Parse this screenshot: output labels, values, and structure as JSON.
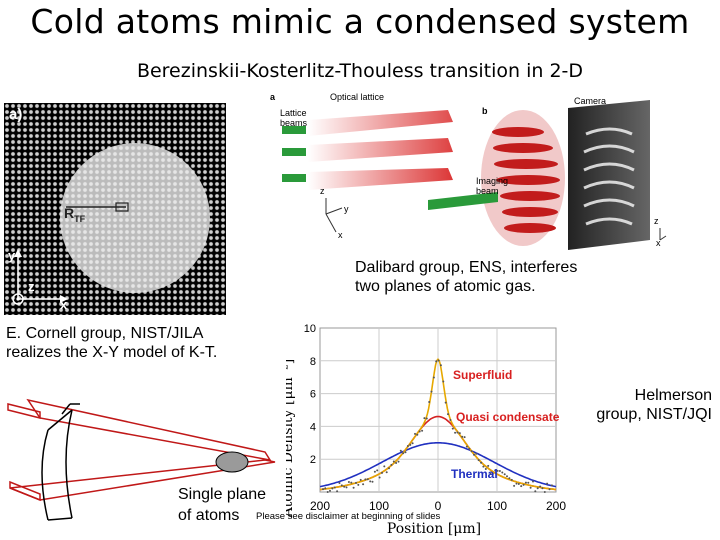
{
  "slide": {
    "title": "Cold atoms mimic a condensed system",
    "subtitle": "Berezinskii-Kosterlitz-Thouless transition in 2-D"
  },
  "lattice_figure": {
    "panel_label": "a)",
    "radius_label": "R",
    "radius_sub": "TF",
    "axis_y": "y",
    "axis_z": "z",
    "axis_x": "x"
  },
  "optical_figure": {
    "panel_a": "a",
    "panel_b": "b",
    "optical_lattice": "Optical lattice",
    "lattice_beams_1": "Lattice",
    "lattice_beams_2": "beams",
    "camera": "Camera",
    "imaging_1": "Imaging",
    "imaging_2": "beam",
    "axis_z": "z",
    "axis_y": "y",
    "axis_x": "x",
    "axis_z2": "z",
    "axis_x2": "x"
  },
  "captions": {
    "dalibard_1": "Dalibard group, ENS, interferes",
    "dalibard_2": "two planes of atomic gas.",
    "cornell_1": "E. Cornell group, NIST/JILA",
    "cornell_2": "realizes the X-Y model of K-T.",
    "helmerson_1": "Helmerson",
    "helmerson_2": "group, NIST/JQI",
    "single_1": "Single plane",
    "single_2": "of atoms",
    "disclaimer": "Please see disclaimer at beginning of slides"
  },
  "chart_data": {
    "type": "line",
    "xlabel": "Position [μm]",
    "ylabel": "Atomic Density [μm⁻²]",
    "xlim": [
      -200,
      200
    ],
    "ylim": [
      0,
      10
    ],
    "x_ticks": [
      "200",
      "100",
      "0",
      "100",
      "200"
    ],
    "y_ticks": [
      "2",
      "4",
      "6",
      "8",
      "10"
    ],
    "grid": true,
    "series": [
      {
        "name": "Superfluid",
        "color": "#e6a800",
        "width": 16,
        "peak": 8.1,
        "base_sigma": 70,
        "base_amp": 1.6
      },
      {
        "name": "Quasi condensate",
        "color": "#d42020",
        "width": 60,
        "peak": 4.6
      },
      {
        "name": "Thermal",
        "color": "#2030c0",
        "width": 120,
        "peak": 3.0
      }
    ],
    "annotations": [
      "Superfluid",
      "Quasi condensate",
      "Thermal"
    ]
  }
}
